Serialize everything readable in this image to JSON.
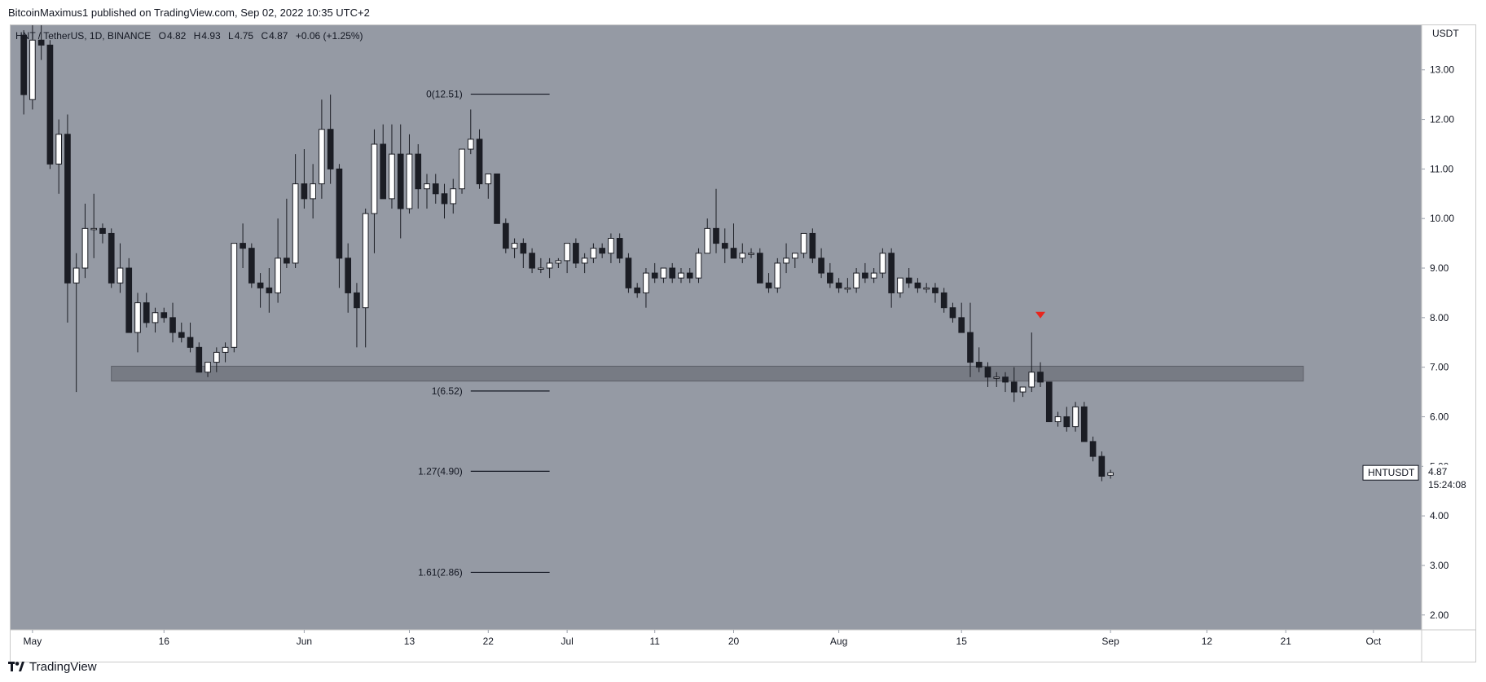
{
  "header": {
    "published": "BitcoinMaximus1 published on TradingView.com, Sep 02, 2022 10:35 UTC+2"
  },
  "legend": {
    "symbol": "HNT / TetherUS, 1D, BINANCE",
    "o_label": "O",
    "o": "4.82",
    "h_label": "H",
    "h": "4.93",
    "l_label": "L",
    "l": "4.75",
    "c_label": "C",
    "c": "4.87",
    "change": "+0.06 (+1.25%)"
  },
  "price_tag": {
    "symbol": "HNTUSDT",
    "price": "4.87",
    "countdown": "15:24:08"
  },
  "footer": {
    "brand": "TradingView"
  },
  "colors": {
    "background": "#959aa4",
    "up_candle": "#ffffff",
    "down_candle": "#1b1d24",
    "support_zone": "#6d7079",
    "marker": "#e8251d",
    "fib_line": "#131722"
  },
  "chart_data": {
    "type": "candlestick",
    "currency_label": "USDT",
    "y_ticks": [
      "13.00",
      "12.00",
      "11.00",
      "10.00",
      "9.00",
      "8.00",
      "7.00",
      "6.00",
      "5.00",
      "4.00",
      "3.00",
      "2.00"
    ],
    "ylim": [
      1.7,
      13.9
    ],
    "x_ticks": [
      {
        "label": "May",
        "day": 0
      },
      {
        "label": "16",
        "day": 15
      },
      {
        "label": "Jun",
        "day": 31
      },
      {
        "label": "13",
        "day": 43
      },
      {
        "label": "22",
        "day": 52
      },
      {
        "label": "Jul",
        "day": 61
      },
      {
        "label": "11",
        "day": 71
      },
      {
        "label": "20",
        "day": 80
      },
      {
        "label": "Aug",
        "day": 92
      },
      {
        "label": "15",
        "day": 106
      },
      {
        "label": "Sep",
        "day": 123
      },
      {
        "label": "12",
        "day": 134
      },
      {
        "label": "21",
        "day": 143
      },
      {
        "label": "Oct",
        "day": 153
      }
    ],
    "x_day_range": [
      -2.5,
      158.5
    ],
    "candles_ohlc": [
      [
        13.7,
        13.8,
        12.1,
        12.5
      ],
      [
        12.4,
        14.0,
        12.2,
        13.6
      ],
      [
        13.6,
        14.0,
        13.2,
        13.5
      ],
      [
        13.5,
        13.6,
        11.0,
        11.1
      ],
      [
        11.1,
        12.0,
        10.5,
        11.7
      ],
      [
        11.7,
        12.1,
        7.9,
        8.7
      ],
      [
        8.7,
        9.3,
        6.5,
        9.0
      ],
      [
        9.0,
        10.3,
        8.8,
        9.8
      ],
      [
        9.8,
        10.5,
        9.2,
        9.8
      ],
      [
        9.8,
        9.9,
        9.5,
        9.7
      ],
      [
        9.7,
        9.8,
        8.6,
        8.7
      ],
      [
        8.7,
        9.5,
        8.5,
        9.0
      ],
      [
        9.0,
        9.2,
        7.7,
        7.7
      ],
      [
        7.7,
        8.5,
        7.3,
        8.3
      ],
      [
        8.3,
        8.5,
        7.8,
        7.9
      ],
      [
        7.9,
        8.2,
        7.7,
        8.1
      ],
      [
        8.1,
        8.2,
        7.9,
        8.0
      ],
      [
        8.0,
        8.3,
        7.5,
        7.7
      ],
      [
        7.7,
        7.9,
        7.5,
        7.6
      ],
      [
        7.6,
        7.9,
        7.3,
        7.4
      ],
      [
        7.4,
        7.5,
        6.9,
        6.9
      ],
      [
        6.9,
        7.1,
        6.8,
        7.1
      ],
      [
        7.1,
        7.4,
        6.9,
        7.3
      ],
      [
        7.3,
        7.5,
        7.1,
        7.4
      ],
      [
        7.4,
        9.5,
        7.3,
        9.5
      ],
      [
        9.5,
        9.9,
        9.0,
        9.4
      ],
      [
        9.4,
        9.5,
        8.6,
        8.7
      ],
      [
        8.7,
        8.9,
        8.2,
        8.6
      ],
      [
        8.6,
        9.0,
        8.1,
        8.5
      ],
      [
        8.5,
        10.0,
        8.3,
        9.2
      ],
      [
        9.2,
        10.4,
        9.0,
        9.1
      ],
      [
        9.1,
        11.3,
        9.0,
        10.7
      ],
      [
        10.7,
        11.4,
        10.2,
        10.4
      ],
      [
        10.4,
        11.1,
        10.0,
        10.7
      ],
      [
        10.7,
        12.4,
        10.4,
        11.8
      ],
      [
        11.8,
        12.5,
        10.7,
        11.0
      ],
      [
        11.0,
        11.1,
        8.6,
        9.2
      ],
      [
        9.2,
        9.5,
        8.1,
        8.5
      ],
      [
        8.5,
        8.7,
        7.4,
        8.2
      ],
      [
        8.2,
        10.2,
        7.4,
        10.1
      ],
      [
        10.1,
        11.8,
        9.3,
        11.5
      ],
      [
        11.5,
        11.9,
        10.5,
        10.4
      ],
      [
        10.4,
        11.9,
        10.2,
        11.3
      ],
      [
        11.3,
        11.9,
        9.6,
        10.2
      ],
      [
        10.2,
        11.7,
        10.1,
        11.3
      ],
      [
        11.3,
        11.5,
        10.2,
        10.6
      ],
      [
        10.6,
        10.9,
        10.2,
        10.7
      ],
      [
        10.7,
        10.9,
        10.3,
        10.5
      ],
      [
        10.5,
        10.7,
        10.0,
        10.3
      ],
      [
        10.3,
        10.8,
        10.1,
        10.6
      ],
      [
        10.6,
        11.4,
        10.5,
        11.4
      ],
      [
        11.4,
        12.2,
        11.3,
        11.6
      ],
      [
        11.6,
        11.8,
        10.6,
        10.7
      ],
      [
        10.7,
        10.9,
        10.4,
        10.9
      ],
      [
        10.9,
        10.9,
        9.9,
        9.9
      ],
      [
        9.9,
        10.0,
        9.3,
        9.4
      ],
      [
        9.4,
        9.6,
        9.2,
        9.5
      ],
      [
        9.5,
        9.6,
        9.0,
        9.3
      ],
      [
        9.3,
        9.4,
        8.9,
        9.0
      ],
      [
        9.0,
        9.2,
        8.9,
        9.0
      ],
      [
        9.0,
        9.2,
        8.8,
        9.1
      ],
      [
        9.1,
        9.2,
        9.0,
        9.15
      ],
      [
        9.15,
        9.5,
        8.9,
        9.5
      ],
      [
        9.5,
        9.6,
        9.0,
        9.1
      ],
      [
        9.1,
        9.3,
        8.9,
        9.2
      ],
      [
        9.2,
        9.5,
        9.1,
        9.4
      ],
      [
        9.4,
        9.5,
        9.2,
        9.3
      ],
      [
        9.3,
        9.7,
        9.1,
        9.6
      ],
      [
        9.6,
        9.7,
        9.1,
        9.2
      ],
      [
        9.2,
        9.3,
        8.5,
        8.6
      ],
      [
        8.6,
        8.7,
        8.4,
        8.5
      ],
      [
        8.5,
        9.0,
        8.2,
        8.9
      ],
      [
        8.9,
        9.1,
        8.7,
        8.8
      ],
      [
        8.8,
        9.0,
        8.7,
        9.0
      ],
      [
        9.0,
        9.1,
        8.7,
        8.8
      ],
      [
        8.8,
        9.0,
        8.7,
        8.9
      ],
      [
        8.9,
        9.0,
        8.7,
        8.8
      ],
      [
        8.8,
        9.4,
        8.7,
        9.3
      ],
      [
        9.3,
        10.0,
        9.3,
        9.8
      ],
      [
        9.8,
        10.6,
        9.3,
        9.5
      ],
      [
        9.5,
        9.8,
        9.1,
        9.4
      ],
      [
        9.4,
        9.9,
        9.2,
        9.2
      ],
      [
        9.2,
        9.5,
        9.1,
        9.3
      ],
      [
        9.3,
        9.4,
        9.2,
        9.3
      ],
      [
        9.3,
        9.4,
        8.7,
        8.7
      ],
      [
        8.7,
        8.9,
        8.5,
        8.6
      ],
      [
        8.6,
        9.2,
        8.5,
        9.1
      ],
      [
        9.1,
        9.5,
        8.9,
        9.2
      ],
      [
        9.2,
        9.3,
        9.0,
        9.3
      ],
      [
        9.3,
        9.7,
        9.2,
        9.7
      ],
      [
        9.7,
        9.8,
        9.1,
        9.2
      ],
      [
        9.2,
        9.4,
        8.8,
        8.9
      ],
      [
        8.9,
        9.1,
        8.6,
        8.7
      ],
      [
        8.7,
        8.8,
        8.5,
        8.6
      ],
      [
        8.6,
        8.8,
        8.5,
        8.6
      ],
      [
        8.6,
        9.0,
        8.5,
        8.9
      ],
      [
        8.9,
        9.1,
        8.7,
        8.8
      ],
      [
        8.8,
        9.0,
        8.7,
        8.9
      ],
      [
        8.9,
        9.4,
        8.8,
        9.3
      ],
      [
        9.3,
        9.4,
        8.2,
        8.5
      ],
      [
        8.5,
        8.8,
        8.4,
        8.8
      ],
      [
        8.8,
        9.0,
        8.6,
        8.7
      ],
      [
        8.7,
        8.8,
        8.5,
        8.6
      ],
      [
        8.6,
        8.7,
        8.5,
        8.6
      ],
      [
        8.6,
        8.7,
        8.3,
        8.5
      ],
      [
        8.5,
        8.6,
        8.1,
        8.2
      ],
      [
        8.2,
        8.3,
        7.9,
        8.0
      ],
      [
        8.0,
        8.3,
        7.7,
        7.7
      ],
      [
        7.7,
        8.3,
        6.8,
        7.1
      ],
      [
        7.1,
        7.4,
        6.9,
        7.0
      ],
      [
        7.0,
        7.1,
        6.6,
        6.8
      ],
      [
        6.8,
        6.9,
        6.6,
        6.8
      ],
      [
        6.8,
        6.9,
        6.5,
        6.7
      ],
      [
        6.7,
        7.0,
        6.3,
        6.5
      ],
      [
        6.5,
        6.6,
        6.4,
        6.6
      ],
      [
        6.6,
        7.7,
        6.5,
        6.9
      ],
      [
        6.9,
        7.1,
        6.6,
        6.7
      ],
      [
        6.7,
        6.7,
        5.9,
        5.9
      ],
      [
        5.9,
        6.1,
        5.8,
        6.0
      ],
      [
        6.0,
        6.2,
        5.7,
        5.8
      ],
      [
        5.8,
        6.3,
        5.7,
        6.2
      ],
      [
        6.2,
        6.3,
        5.5,
        5.5
      ],
      [
        5.5,
        5.6,
        5.1,
        5.2
      ],
      [
        5.2,
        5.3,
        4.7,
        4.8
      ],
      [
        4.82,
        4.93,
        4.75,
        4.87
      ]
    ],
    "first_candle_day": -1,
    "support_zone": {
      "from": 6.72,
      "to": 7.02,
      "day_start": 9,
      "day_end": 145
    },
    "fib_levels": [
      {
        "label": "0(12.51)",
        "value": 12.51
      },
      {
        "label": "1(6.52)",
        "value": 6.52
      },
      {
        "label": "1.27(4.90)",
        "value": 4.9
      },
      {
        "label": "1.61(2.86)",
        "value": 2.86
      }
    ],
    "fib_day_start": 50,
    "fib_day_end": 59,
    "marker": {
      "day": 115,
      "value": 8.05,
      "shape": "triangle-down"
    },
    "last_price": 4.87
  }
}
